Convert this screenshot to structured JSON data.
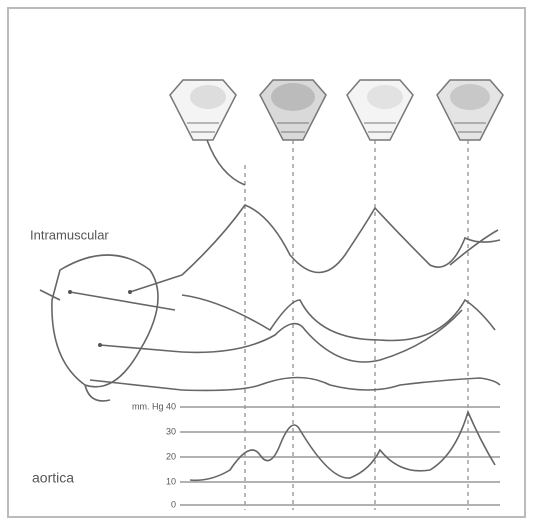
{
  "labels": {
    "upper": "Intramuscular",
    "lower": "aortica"
  },
  "scale": [
    "mm. Hg 40",
    "30",
    "20",
    "10",
    "0"
  ]
}
